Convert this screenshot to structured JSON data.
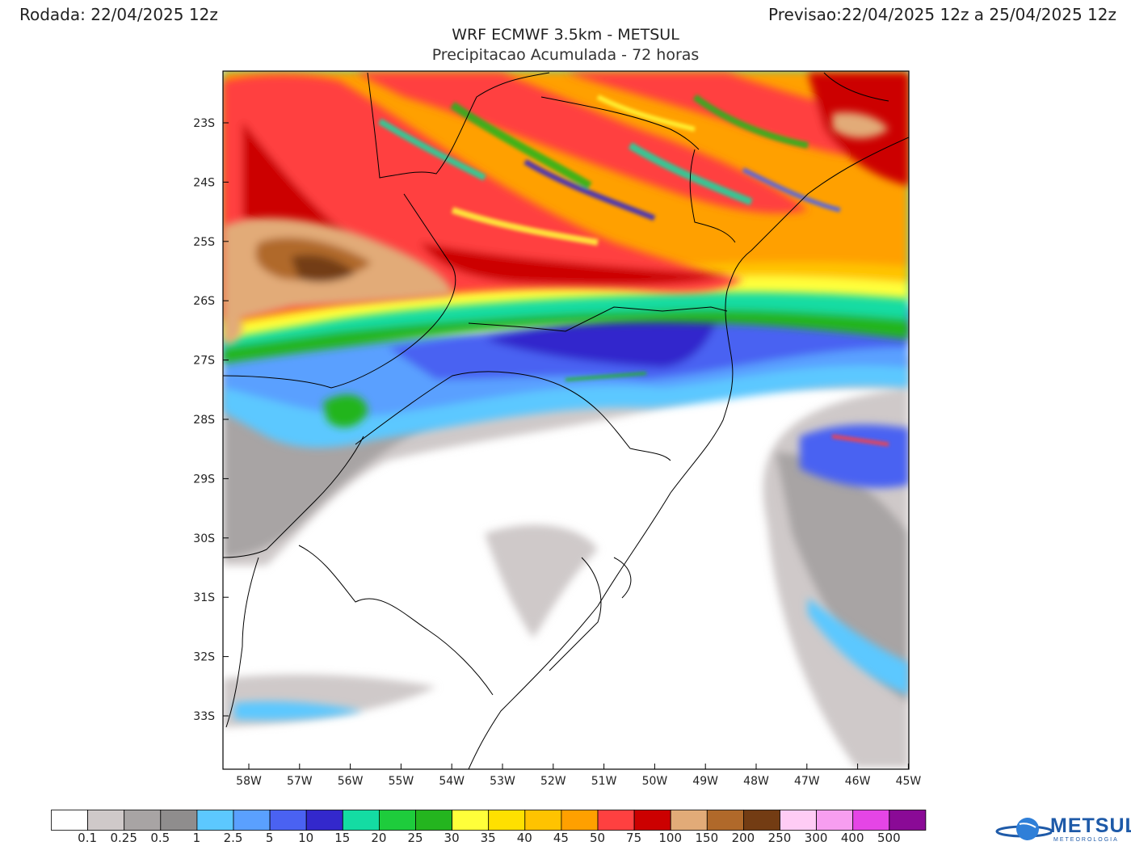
{
  "header": {
    "run_label": "Rodada:",
    "run_value": "22/04/2025 12z",
    "valid_label": "Previsao:",
    "valid_value": "22/04/2025 12z a 25/04/2025 12z",
    "title": "WRF ECMWF 3.5km - METSUL",
    "subtitle": "Precipitacao Acumulada - 72 horas"
  },
  "map": {
    "lat_labels": [
      "23S",
      "24S",
      "25S",
      "26S",
      "27S",
      "28S",
      "29S",
      "30S",
      "31S",
      "32S",
      "33S"
    ],
    "lon_labels": [
      "58W",
      "57W",
      "56W",
      "55W",
      "54W",
      "53W",
      "52W",
      "51W",
      "50W",
      "49W",
      "48W",
      "47W",
      "46W",
      "45W"
    ]
  },
  "legend": {
    "labels": [
      "0.1",
      "0.25",
      "0.5",
      "1",
      "2.5",
      "5",
      "10",
      "15",
      "20",
      "25",
      "30",
      "35",
      "40",
      "45",
      "50",
      "75",
      "100",
      "150",
      "200",
      "250",
      "300",
      "400",
      "500"
    ],
    "colors": [
      "#ffffff",
      "#cfc9c9",
      "#a8a4a4",
      "#8f8d8d",
      "#5cc8ff",
      "#5aa0ff",
      "#4a62f2",
      "#3328cc",
      "#14dca3",
      "#1ecc3c",
      "#24b51f",
      "#ffff3a",
      "#ffe000",
      "#ffc300",
      "#ffa000",
      "#ff4040",
      "#cc0000",
      "#e2ab78",
      "#b0692a",
      "#733c13",
      "#ffccf5",
      "#f79ef0",
      "#e545e6",
      "#8a0a96"
    ]
  },
  "logo": {
    "text": "METSUL",
    "sub": "METEOROLOGIA"
  },
  "colors": {
    "dark_red": "#cc0000",
    "red": "#ff4040",
    "tan": "#e2ab78",
    "brown": "#b0692a",
    "dark_brown": "#733c13",
    "orange": "#ffa000",
    "yellow": "#ffff3a",
    "green": "#24b51f",
    "teal": "#14dca3",
    "blue": "#4a62f2",
    "navy": "#3328cc",
    "light_blue": "#5cc8ff",
    "gray": "#a8a4a4",
    "light_gray": "#cfc9c9"
  }
}
